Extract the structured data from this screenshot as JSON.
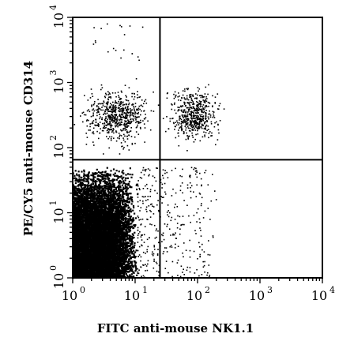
{
  "chart_data": {
    "type": "scatter",
    "xlabel": "FITC anti-mouse NK1.1",
    "ylabel": "PE/CY5 anti-mouse CD314",
    "x_scale": "log",
    "y_scale": "log",
    "xlim": [
      1,
      10000
    ],
    "ylim": [
      1,
      10000
    ],
    "x_ticks": [
      {
        "base": "10",
        "exp": "0",
        "value": 1
      },
      {
        "base": "10",
        "exp": "1",
        "value": 10
      },
      {
        "base": "10",
        "exp": "2",
        "value": 100
      },
      {
        "base": "10",
        "exp": "3",
        "value": 1000
      },
      {
        "base": "10",
        "exp": "4",
        "value": 10000
      }
    ],
    "y_ticks": [
      {
        "base": "10",
        "exp": "0",
        "value": 1
      },
      {
        "base": "10",
        "exp": "1",
        "value": 10
      },
      {
        "base": "10",
        "exp": "2",
        "value": 100
      },
      {
        "base": "10",
        "exp": "3",
        "value": 1000
      },
      {
        "base": "10",
        "exp": "4",
        "value": 10000
      }
    ],
    "quadrant_gates": {
      "x": 25,
      "y": 65
    },
    "populations": [
      {
        "x_range": [
          1,
          11
        ],
        "y_range": [
          1,
          50
        ],
        "density": "very high",
        "approx_events": 9000
      },
      {
        "x_range": [
          1,
          25
        ],
        "y_range": [
          80,
          1200
        ],
        "density": "medium",
        "approx_events": 650
      },
      {
        "x_range": [
          25,
          300
        ],
        "y_range": [
          80,
          1200
        ],
        "density": "medium",
        "approx_events": 550
      },
      {
        "x_range": [
          11,
          200
        ],
        "y_range": [
          1,
          50
        ],
        "density": "low",
        "approx_events": 350
      },
      {
        "x_range": [
          2,
          15
        ],
        "y_range": [
          2000,
          8000
        ],
        "density": "sparse",
        "approx_events": 20
      }
    ],
    "grid": false,
    "legend": "none",
    "marker_color": "#000000"
  }
}
